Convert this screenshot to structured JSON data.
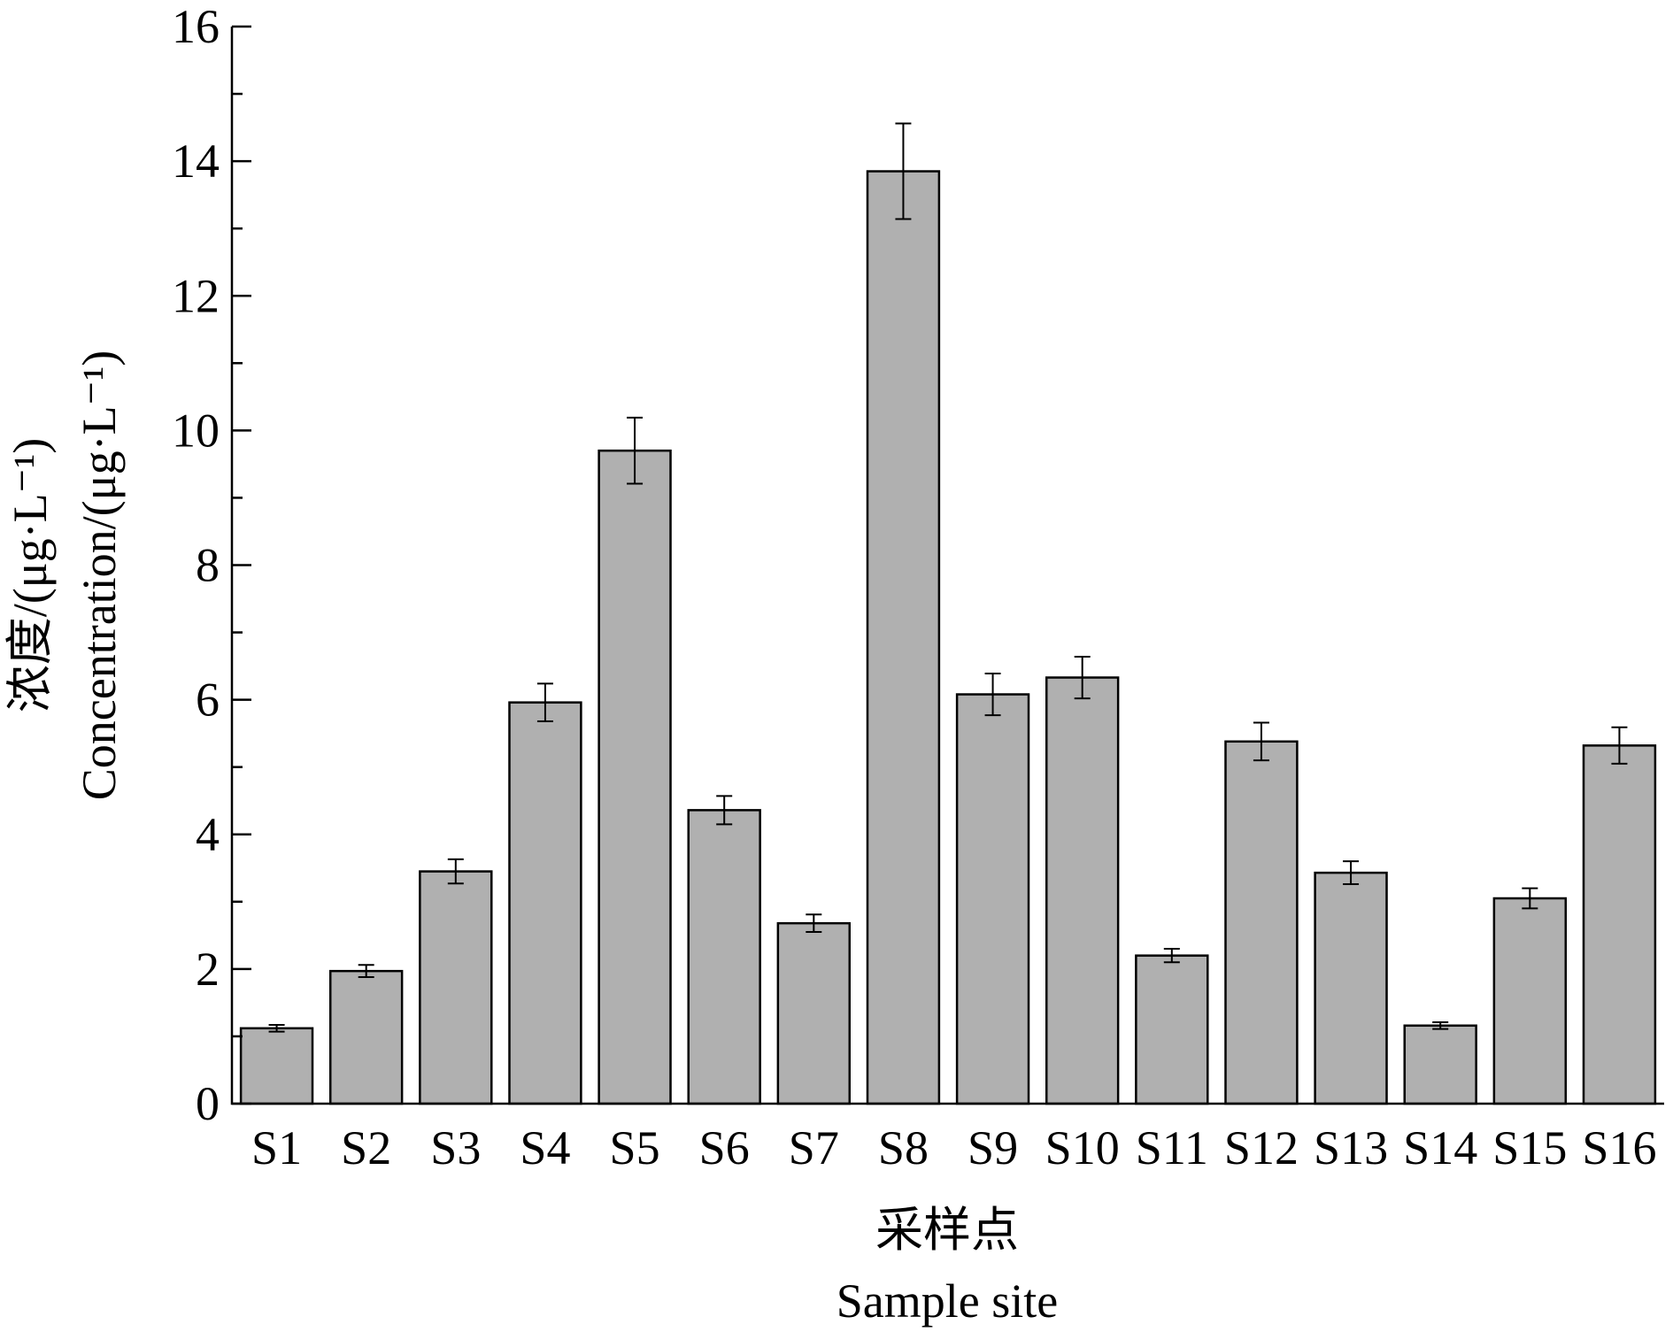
{
  "chart_data": {
    "type": "bar",
    "categories": [
      "S1",
      "S2",
      "S3",
      "S4",
      "S5",
      "S6",
      "S7",
      "S8",
      "S9",
      "S10",
      "S11",
      "S12",
      "S13",
      "S14",
      "S15",
      "S16"
    ],
    "values": [
      1.12,
      1.97,
      3.45,
      5.96,
      9.7,
      4.36,
      2.68,
      13.85,
      6.08,
      6.33,
      2.2,
      5.38,
      3.43,
      1.16,
      3.05,
      5.32
    ],
    "errors": [
      0.05,
      0.09,
      0.18,
      0.28,
      0.49,
      0.21,
      0.13,
      0.71,
      0.31,
      0.31,
      0.1,
      0.28,
      0.17,
      0.05,
      0.15,
      0.27
    ],
    "xlabel_cn": "采样点",
    "xlabel": "Sample site",
    "ylabel_cn": "浓度/(μg·L⁻¹)",
    "ylabel": "Concentration/(μg·L⁻¹)",
    "ylim": [
      0,
      16
    ],
    "yticks": [
      "0",
      "2",
      "4",
      "6",
      "8",
      "10",
      "12",
      "14",
      "16"
    ],
    "grid": false,
    "bar_color": "#b0b0b0"
  }
}
